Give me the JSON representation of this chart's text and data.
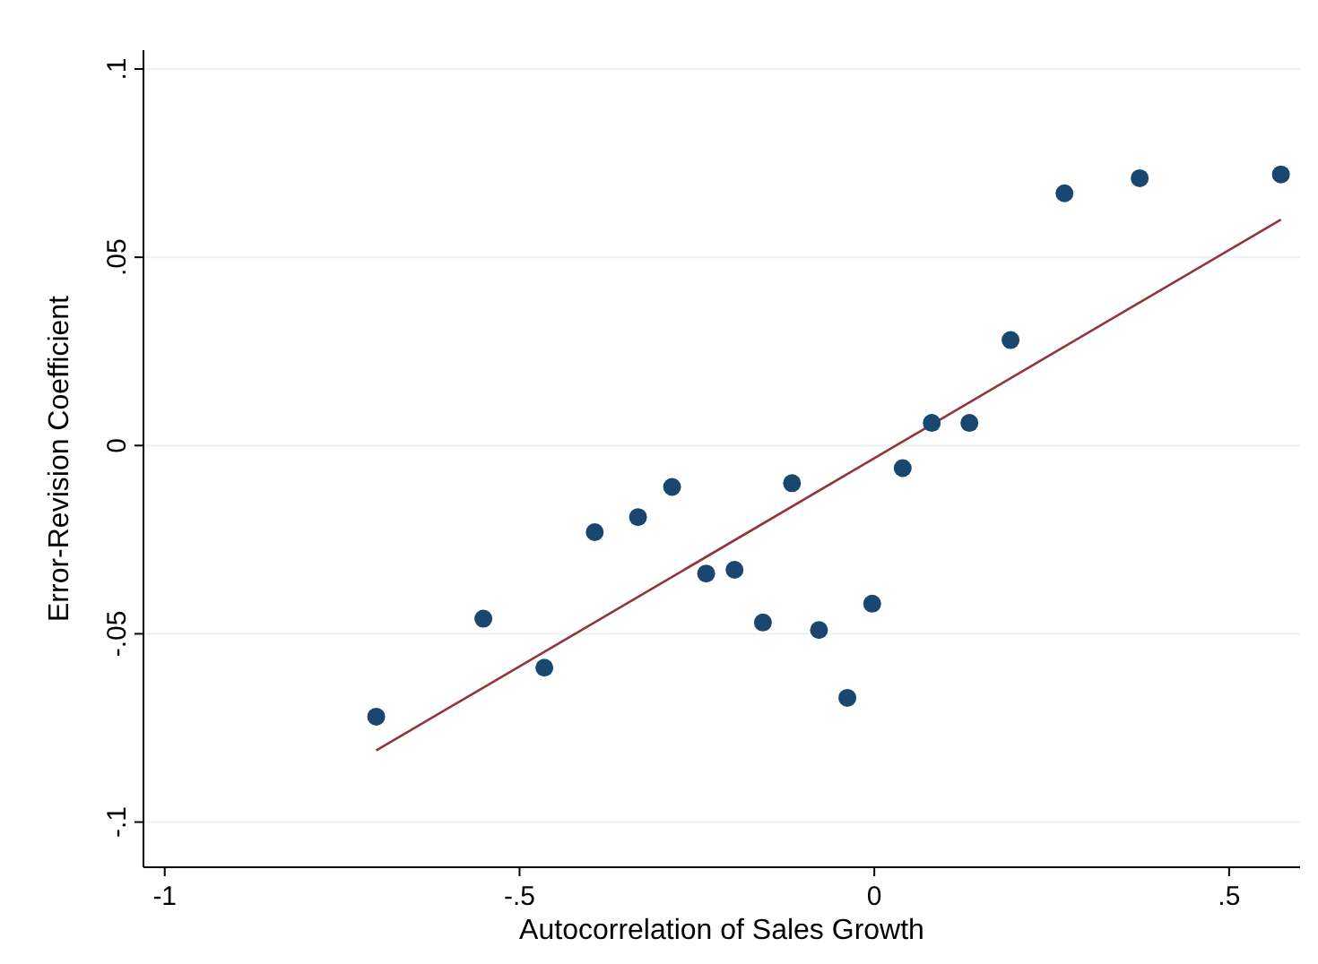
{
  "chart_data": {
    "type": "scatter",
    "xlabel": "Autocorrelation of Sales Growth",
    "ylabel": "Error-Revision Coefficient",
    "xlim": [
      -1.03,
      0.6
    ],
    "ylim": [
      -0.112,
      0.105
    ],
    "xticks": [
      {
        "value": -1,
        "label": "-1"
      },
      {
        "value": -0.5,
        "label": "-.5"
      },
      0,
      {
        "value": 0.5,
        "label": ".5"
      }
    ],
    "yticks": [
      {
        "value": -0.1,
        "label": "-.1"
      },
      {
        "value": -0.05,
        "label": "-.05"
      },
      0,
      {
        "value": 0.05,
        "label": ".05"
      },
      {
        "value": 0.1,
        "label": ".1"
      }
    ],
    "grid": "y",
    "series": [
      {
        "marker": "circle",
        "color": "#1a476f",
        "x": [
          -0.702,
          -0.551,
          -0.465,
          -0.394,
          -0.333,
          -0.285,
          -0.237,
          -0.197,
          -0.157,
          -0.116,
          -0.078,
          -0.038,
          -0.003,
          0.04,
          0.081,
          0.134,
          0.192,
          0.268,
          0.374,
          0.573
        ],
        "values": [
          -0.072,
          -0.046,
          -0.059,
          -0.023,
          -0.019,
          -0.011,
          -0.034,
          -0.033,
          -0.047,
          -0.01,
          -0.049,
          -0.067,
          -0.042,
          -0.006,
          0.006,
          0.006,
          0.028,
          0.067,
          0.071,
          0.072
        ]
      },
      {
        "type": "line",
        "color": "#90353b",
        "x": [
          -0.702,
          0.573
        ],
        "values": [
          -0.081,
          0.06
        ]
      }
    ]
  }
}
